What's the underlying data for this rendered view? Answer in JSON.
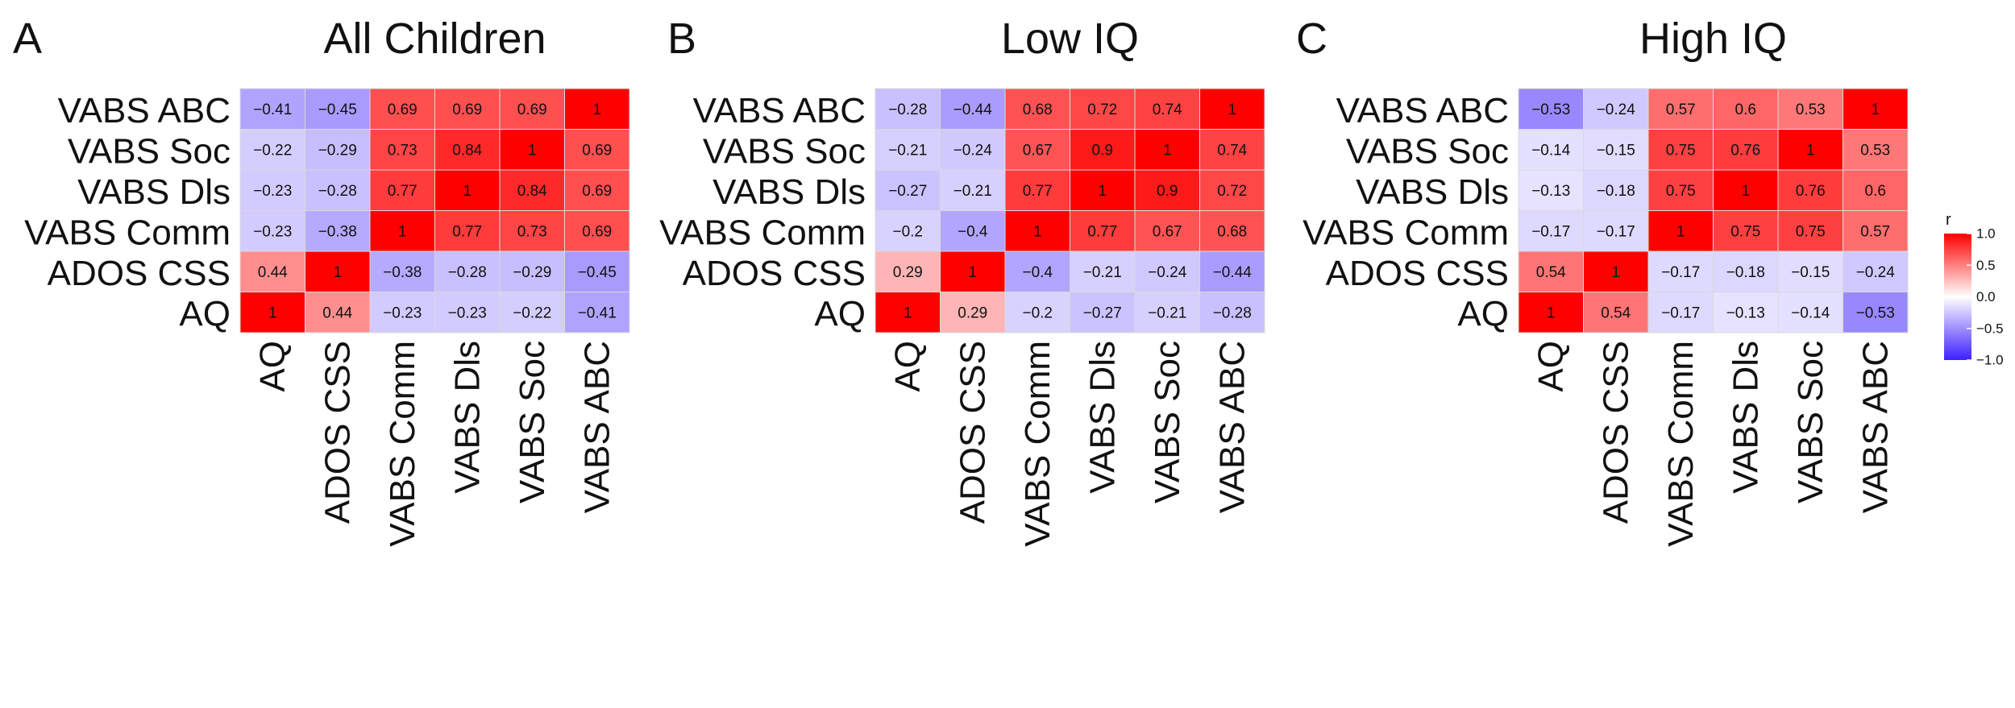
{
  "colors": {
    "negative": "#3d1fff",
    "neutral": "#ffffff",
    "positive": "#ff0000",
    "grid": "#d9d9d9"
  },
  "chart_data": [
    {
      "type": "heatmap",
      "panel": "A",
      "title": "All Children",
      "x_labels": [
        "AQ",
        "ADOS CSS",
        "VABS Comm",
        "VABS Dls",
        "VABS Soc",
        "VABS ABC"
      ],
      "y_labels_top_to_bottom": [
        "VABS ABC",
        "VABS Soc",
        "VABS Dls",
        "VABS Comm",
        "ADOS CSS",
        "AQ"
      ],
      "values": [
        [
          -0.41,
          -0.45,
          0.69,
          0.69,
          0.69,
          1
        ],
        [
          -0.22,
          -0.29,
          0.73,
          0.84,
          1,
          0.69
        ],
        [
          -0.23,
          -0.28,
          0.77,
          1,
          0.84,
          0.69
        ],
        [
          -0.23,
          -0.38,
          1,
          0.77,
          0.73,
          0.69
        ],
        [
          0.44,
          1,
          -0.38,
          -0.28,
          -0.29,
          -0.45
        ],
        [
          1,
          0.44,
          -0.23,
          -0.23,
          -0.22,
          -0.41
        ]
      ]
    },
    {
      "type": "heatmap",
      "panel": "B",
      "title": "Low IQ",
      "x_labels": [
        "AQ",
        "ADOS CSS",
        "VABS Comm",
        "VABS Dls",
        "VABS Soc",
        "VABS ABC"
      ],
      "y_labels_top_to_bottom": [
        "VABS ABC",
        "VABS Soc",
        "VABS Dls",
        "VABS Comm",
        "ADOS CSS",
        "AQ"
      ],
      "values": [
        [
          -0.28,
          -0.44,
          0.68,
          0.72,
          0.74,
          1
        ],
        [
          -0.21,
          -0.24,
          0.67,
          0.9,
          1,
          0.74
        ],
        [
          -0.27,
          -0.21,
          0.77,
          1,
          0.9,
          0.72
        ],
        [
          -0.2,
          -0.4,
          1,
          0.77,
          0.67,
          0.68
        ],
        [
          0.29,
          1,
          -0.4,
          -0.21,
          -0.24,
          -0.44
        ],
        [
          1,
          0.29,
          -0.2,
          -0.27,
          -0.21,
          -0.28
        ]
      ]
    },
    {
      "type": "heatmap",
      "panel": "C",
      "title": "High IQ",
      "x_labels": [
        "AQ",
        "ADOS CSS",
        "VABS Comm",
        "VABS Dls",
        "VABS Soc",
        "VABS ABC"
      ],
      "y_labels_top_to_bottom": [
        "VABS ABC",
        "VABS Soc",
        "VABS Dls",
        "VABS Comm",
        "ADOS CSS",
        "AQ"
      ],
      "values": [
        [
          -0.53,
          -0.24,
          0.57,
          0.6,
          0.53,
          1
        ],
        [
          -0.14,
          -0.15,
          0.75,
          0.76,
          1,
          0.53
        ],
        [
          -0.13,
          -0.18,
          0.75,
          1,
          0.76,
          0.6
        ],
        [
          -0.17,
          -0.17,
          1,
          0.75,
          0.75,
          0.57
        ],
        [
          0.54,
          1,
          -0.17,
          -0.18,
          -0.15,
          -0.24
        ],
        [
          1,
          0.54,
          -0.17,
          -0.13,
          -0.14,
          -0.53
        ]
      ]
    }
  ],
  "legend": {
    "title": "r",
    "range": [
      -1.0,
      1.0
    ],
    "ticks": [
      {
        "value": 1.0,
        "label": "1.0"
      },
      {
        "value": 0.5,
        "label": "0.5"
      },
      {
        "value": 0.0,
        "label": "0.0"
      },
      {
        "value": -0.5,
        "label": "−0.5"
      },
      {
        "value": -1.0,
        "label": "−1.0"
      }
    ]
  }
}
